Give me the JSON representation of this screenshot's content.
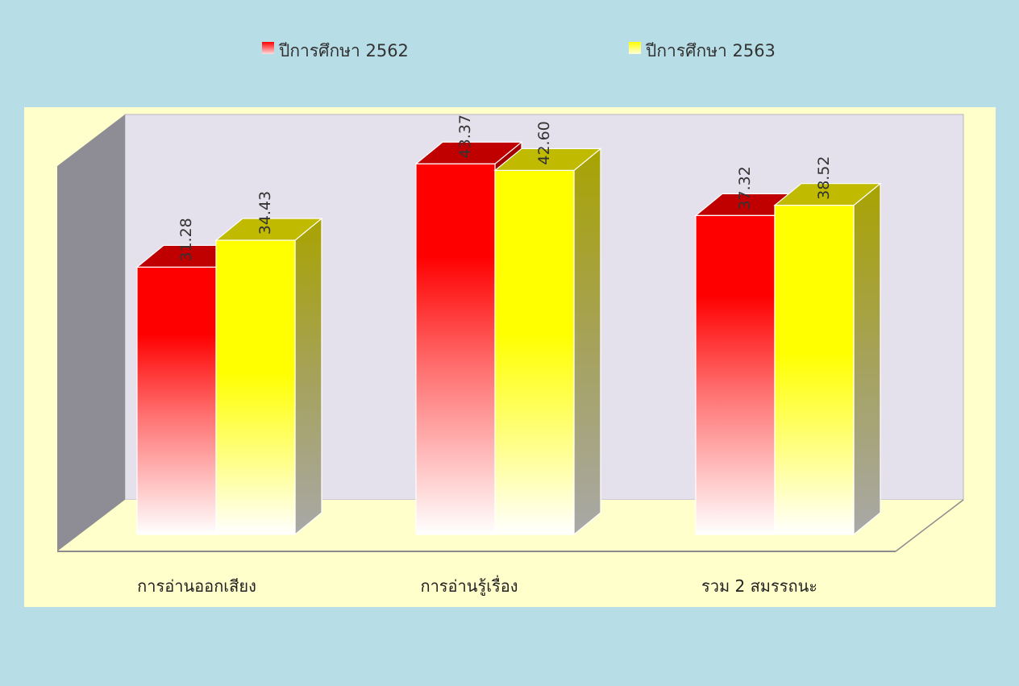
{
  "chart_data": {
    "type": "bar",
    "categories": [
      "การอ่านออกเสียง",
      "การอ่านรู้เรื่อง",
      "รวม 2 สมรรถนะ"
    ],
    "series": [
      {
        "name": "ปีการศึกษา 2562",
        "values": [
          31.28,
          43.37,
          37.32
        ],
        "color": "#ff0000"
      },
      {
        "name": "ปีการศึกษา 2563",
        "values": [
          34.43,
          42.6,
          38.52
        ],
        "color": "#ffff00"
      }
    ],
    "value_labels": [
      [
        "31.28",
        "43.37",
        "37.32"
      ],
      [
        "34.43",
        "42.60",
        "38.52"
      ]
    ],
    "ylim": [
      0,
      50
    ],
    "legend": "top",
    "grid": false,
    "style": "3d-gradient"
  },
  "colors": {
    "outer_background": "#b7dde6",
    "plot_background": "#ffffcc",
    "back_wall": "#e4e0ec",
    "side_wall": "#8e8c95",
    "floor": "#ffffcc"
  }
}
